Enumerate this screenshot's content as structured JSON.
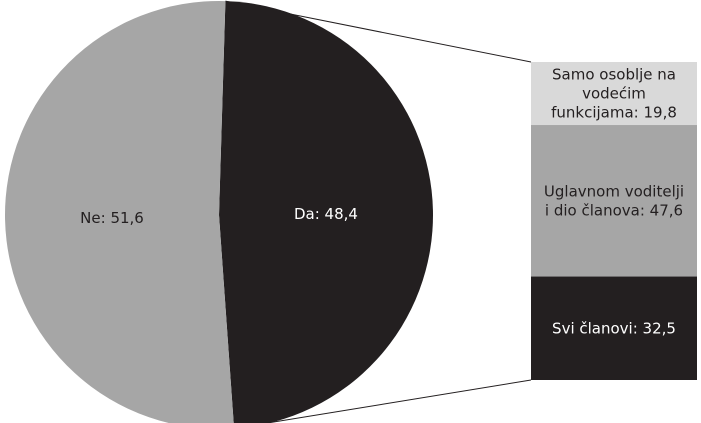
{
  "chart_data": [
    {
      "type": "pie",
      "categories": [
        "Da",
        "Ne"
      ],
      "values": [
        48.4,
        51.6
      ],
      "labels": [
        "Da: 48,4",
        "Ne: 51,6"
      ],
      "colors": [
        "#231f20",
        "#a6a6a6"
      ],
      "label_colors": [
        "#ffffff",
        "#231f20"
      ]
    },
    {
      "type": "bar",
      "stacked": true,
      "categories": [
        "Samo osoblje na vodećim funkcijama",
        "Uglavnom voditelji i dio članova",
        "Svi članovi"
      ],
      "values": [
        19.8,
        47.6,
        32.5
      ],
      "labels": [
        [
          "Samo osoblje na",
          "vodećim",
          "funkcijama: 19,8"
        ],
        [
          "Uglavnom voditelji",
          "i dio članova: 47,6"
        ],
        [
          "Svi članovi: 32,5"
        ]
      ],
      "colors": [
        "#d9d9d9",
        "#a6a6a6",
        "#231f20"
      ],
      "label_colors": [
        "#231f20",
        "#231f20",
        "#ffffff"
      ]
    }
  ]
}
